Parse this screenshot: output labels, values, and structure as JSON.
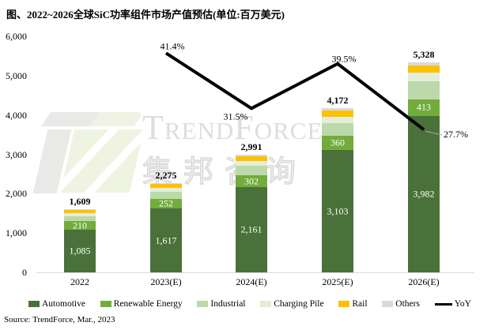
{
  "title": "图、2022~2026全球SiC功率组件市场产值预估(单位:百万美元)",
  "source": "Source: TrendForce, Mar., 2023",
  "watermark": {
    "brand": "TrendForce",
    "cn": "集邦咨询"
  },
  "chart_data": {
    "type": "bar",
    "subtype": "stacked-bar-with-line",
    "title": "图、2022~2026全球SiC功率组件市场产值预估(单位:百万美元)",
    "unit": "百万美元 (million USD)",
    "categories": [
      "2022",
      "2023(E)",
      "2024(E)",
      "2025(E)",
      "2026(E)"
    ],
    "totals": [
      1609,
      2275,
      2991,
      4172,
      5328
    ],
    "series": [
      {
        "name": "Automotive",
        "color": "#4a7139",
        "labeled": true,
        "values": [
          1085,
          1617,
          2161,
          3103,
          3982
        ]
      },
      {
        "name": "Renewable Energy",
        "color": "#72ac3d",
        "labeled": true,
        "values": [
          210,
          252,
          302,
          360,
          413
        ]
      },
      {
        "name": "Industrial",
        "color": "#bcd9a9",
        "labeled": false,
        "values": [
          130,
          170,
          240,
          320,
          460
        ]
      },
      {
        "name": "Charging Pile",
        "color": "#e2eed8",
        "labeled": false,
        "values": [
          75,
          100,
          130,
          180,
          230
        ]
      },
      {
        "name": "Rail",
        "color": "#fdc101",
        "labeled": false,
        "values": [
          80,
          100,
          110,
          150,
          165
        ]
      },
      {
        "name": "Others",
        "color": "#d9d9d9",
        "labeled": false,
        "values": [
          29,
          36,
          48,
          59,
          78
        ]
      }
    ],
    "line_series": {
      "name": "YoY",
      "color": "#000000",
      "values_pct": [
        null,
        41.4,
        31.5,
        39.5,
        27.7
      ],
      "labels": [
        "41.4%",
        "31.5%",
        "39.5%",
        "27.7%"
      ]
    },
    "ylim": [
      0,
      6000
    ],
    "yticks": [
      0,
      1000,
      2000,
      3000,
      4000,
      5000,
      6000
    ],
    "grid": false,
    "legend_position": "bottom",
    "note": "Industrial / Charging Pile / Rail / Others segments carry no data labels in the chart; their values are estimated from segment pixel heights so that each stack sums to the printed total."
  }
}
